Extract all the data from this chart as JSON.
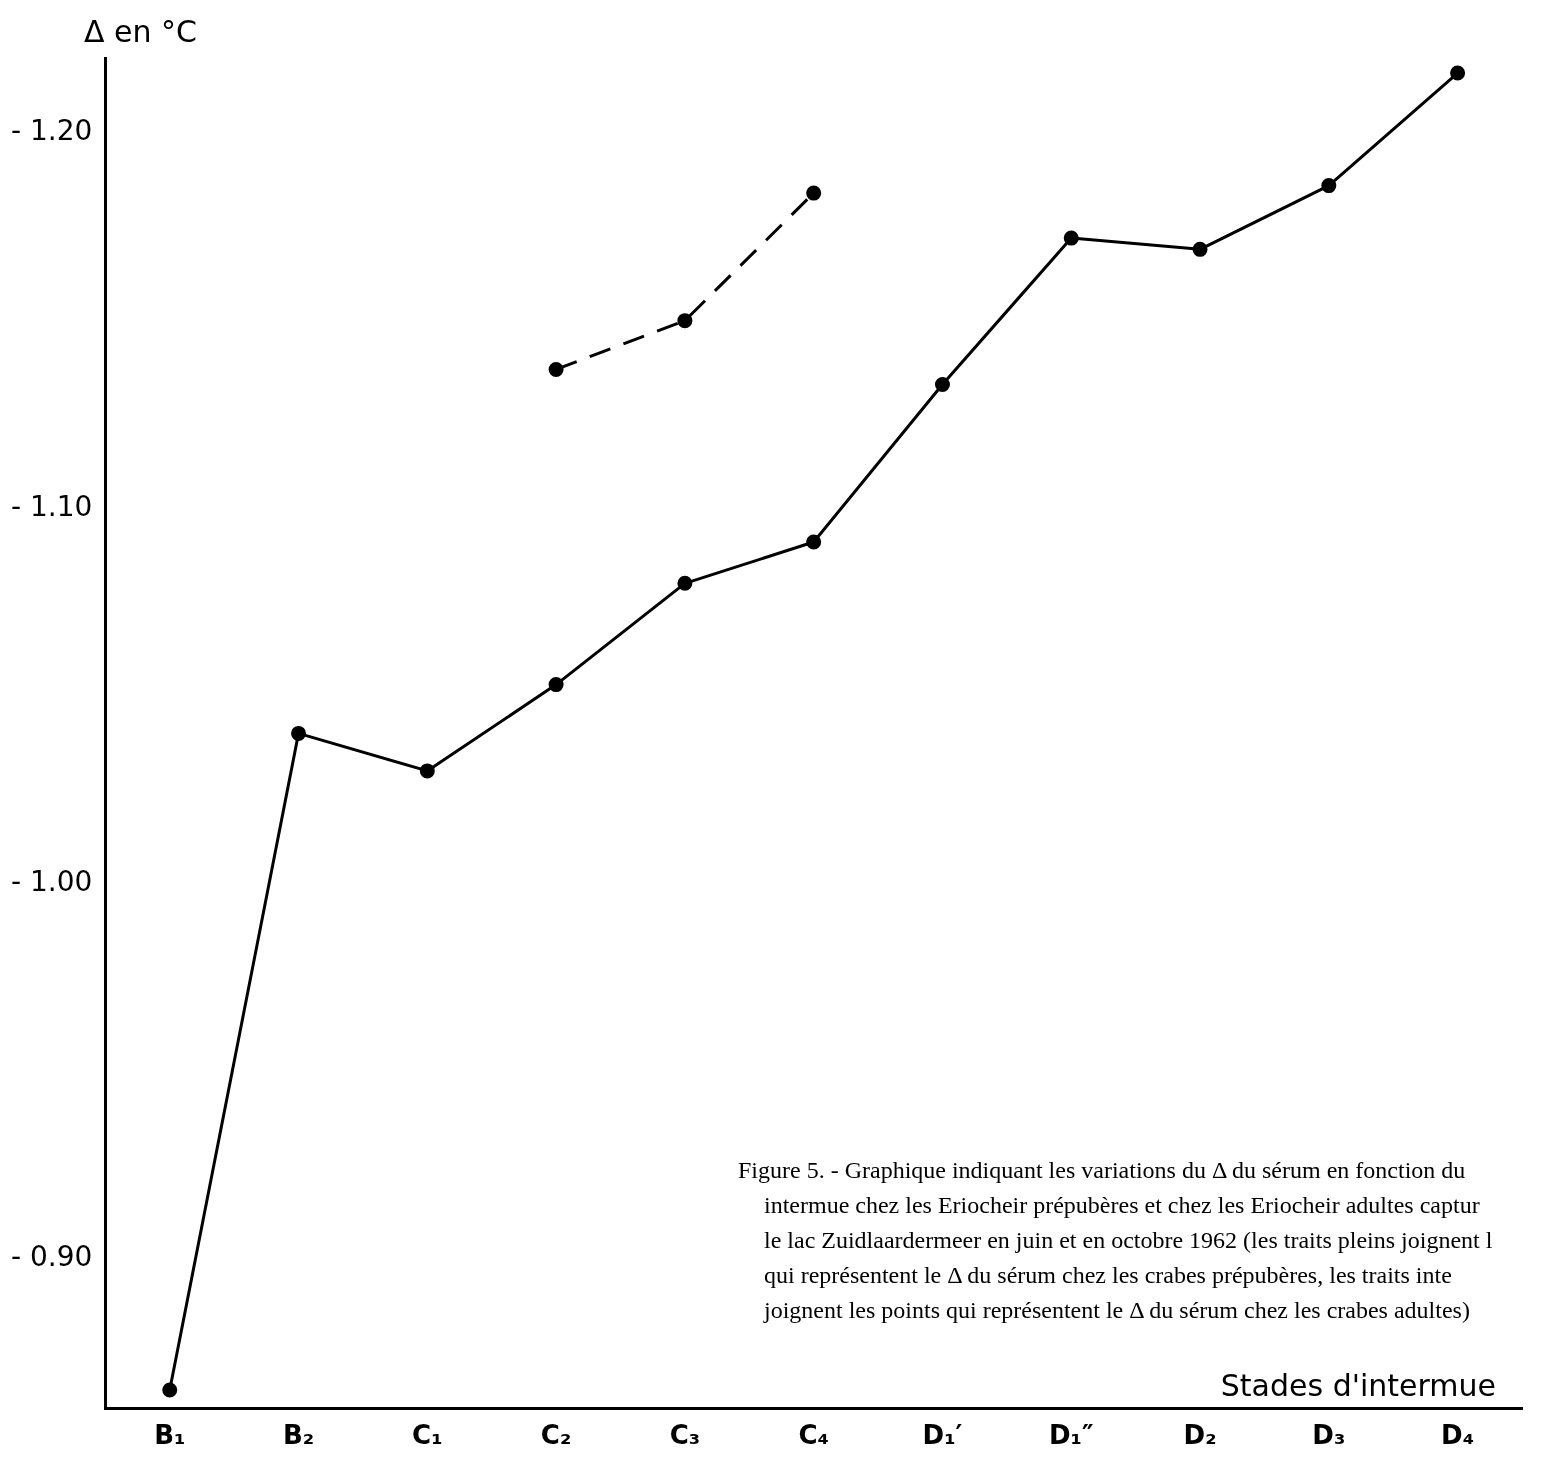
{
  "chart_data": {
    "type": "line",
    "xlabel": "Stades d'intermue",
    "ylabel": "Δ en °C",
    "categories": [
      "B₁",
      "B₂",
      "C₁",
      "C₂",
      "C₃",
      "C₄",
      "D₁′",
      "D₁″",
      "D₂",
      "D₃",
      "D₄"
    ],
    "series": [
      {
        "color": "#000000",
        "line_style": "solid",
        "values": [
          -0.865,
          -1.04,
          -1.03,
          -1.053,
          -1.08,
          -1.091,
          -1.133,
          -1.172,
          -1.169,
          -1.186,
          -1.216
        ]
      },
      {
        "color": "#000000",
        "line_style": "dashed",
        "values": [
          null,
          null,
          null,
          -1.137,
          -1.15,
          -1.184,
          null,
          null,
          null,
          null,
          null
        ]
      }
    ],
    "ylim": [
      -0.86,
      -1.22
    ],
    "yticks": [
      {
        "value": -0.9,
        "label": "- 0.90"
      },
      {
        "value": -1.0,
        "label": "- 1.00"
      },
      {
        "value": -1.1,
        "label": "- 1.10"
      },
      {
        "value": -1.2,
        "label": "- 1.20"
      }
    ],
    "grid": false,
    "legend": false,
    "marker": "circle",
    "annotations": [
      "Figure 5. - Graphique indiquant les variations du Δ du sérum en fonction du",
      "intermue chez les Eriocheir prépubères et chez les Eriocheir adultes captur",
      "le lac Zuidlaardermeer en juin et en octobre 1962 (les traits pleins joignent l",
      "qui représentent le Δ du sérum chez les crabes prépubères, les traits inte",
      "joignent les points qui représentent le Δ du sérum chez les crabes adultes)"
    ]
  }
}
